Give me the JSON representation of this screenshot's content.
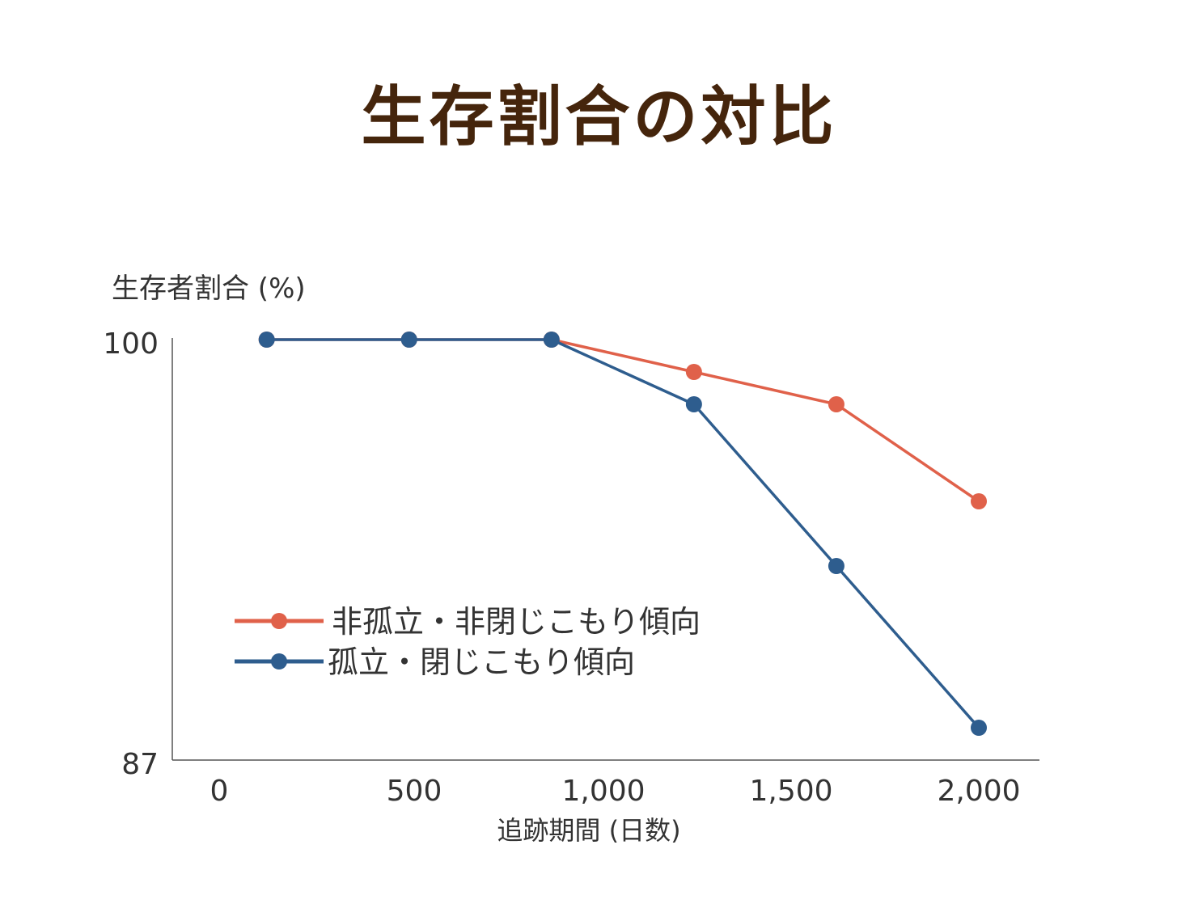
{
  "title": "生存割合の対比",
  "chart_data": {
    "type": "line",
    "xlabel": "追跡期間 (日数)",
    "ylabel": "生存者割合 (%)",
    "ylim": [
      87,
      100
    ],
    "y_ticks": [
      "100",
      "87"
    ],
    "x_ticks": [
      "0",
      "500",
      "1,000",
      "1,500",
      "2,000"
    ],
    "legend_position": "lower-left",
    "series": [
      {
        "name": "非孤立・非閉じこもり傾向",
        "color": "#e0614a",
        "x": [
          125,
          500,
          875,
          1250,
          1625,
          2000
        ],
        "values": [
          100,
          100,
          100,
          99.0,
          98.0,
          95.0
        ]
      },
      {
        "name": "孤立・閉じこもり傾向",
        "color": "#2e5d8e",
        "x": [
          125,
          500,
          875,
          1250,
          1625,
          2000
        ],
        "values": [
          100,
          100,
          100,
          98.0,
          93.0,
          88.0
        ]
      }
    ]
  }
}
